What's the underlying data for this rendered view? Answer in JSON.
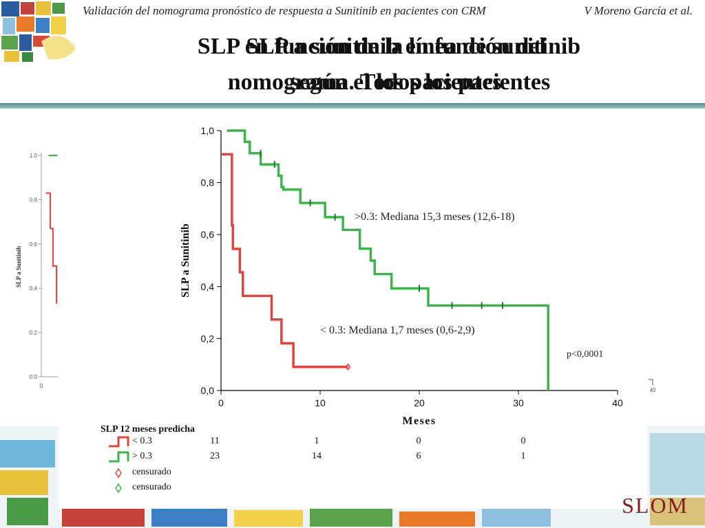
{
  "header": {
    "subtitle": "Validación del nomograma pronóstico de respuesta a Sunitinib en pacientes con CRM",
    "author": "V Moreno García et al."
  },
  "title_layers": {
    "back": [
      "SLP en función de la línea de sunitinib",
      "nomograma. Todos los pacientes"
    ],
    "front": [
      "SLP a sunitinib en función del",
      "según el los pacientes"
    ]
  },
  "chart_data": [
    {
      "type": "line",
      "ylabel": "SLP a Sunitinib",
      "xlabel": "Meses",
      "xlim": [
        0,
        40
      ],
      "ylim": [
        0,
        1
      ],
      "x_ticks": [
        "0",
        "10",
        "20",
        "30",
        "40"
      ],
      "y_ticks": [
        "0,0",
        "0,2",
        "0,4",
        "0,6",
        "0,8",
        "1,0"
      ],
      "colors": {
        "low": "#e8413c",
        "high": "#3ab54a"
      },
      "series": [
        {
          "name": "< 0.3",
          "steps": [
            [
              0,
              0.909
            ],
            [
              1.0,
              0.909
            ],
            [
              1.1,
              0.636
            ],
            [
              1.2,
              0.545
            ],
            [
              1.9,
              0.455
            ],
            [
              2.2,
              0.364
            ],
            [
              5.1,
              0.273
            ],
            [
              6.1,
              0.182
            ],
            [
              7.3,
              0.091
            ],
            [
              12.8,
              0.091
            ]
          ],
          "censored": [
            [
              12.8,
              0.091
            ]
          ]
        },
        {
          "name": "> 0.3",
          "steps": [
            [
              0.6,
              1.0
            ],
            [
              1.9,
              1.0
            ],
            [
              2.4,
              0.957
            ],
            [
              2.9,
              0.913
            ],
            [
              4.0,
              0.87
            ],
            [
              5.8,
              0.826
            ],
            [
              6.1,
              0.783
            ],
            [
              6.3,
              0.773
            ],
            [
              8.0,
              0.722
            ],
            [
              10.5,
              0.667
            ],
            [
              12.3,
              0.618
            ],
            [
              14.0,
              0.546
            ],
            [
              15.1,
              0.5
            ],
            [
              15.5,
              0.448
            ],
            [
              17.2,
              0.393
            ],
            [
              20.9,
              0.327
            ],
            [
              33.0,
              0.327
            ],
            [
              33.0,
              0.0
            ]
          ],
          "censored": [
            [
              4.0,
              0.913
            ],
            [
              5.4,
              0.87
            ],
            [
              9.0,
              0.722
            ],
            [
              11.5,
              0.667
            ],
            [
              20.0,
              0.393
            ],
            [
              23.3,
              0.327
            ],
            [
              26.3,
              0.327
            ],
            [
              28.4,
              0.327
            ]
          ]
        }
      ],
      "annotations": [
        {
          "text": ">0.3: Mediana 15,3 meses (12,6-18)"
        },
        {
          "text": "< 0.3: Mediana 1,7 meses (0,6-2,9)"
        },
        {
          "text": "p<0,0001"
        }
      ]
    },
    {
      "type": "line",
      "ylabel": "SLP a Sunitinib",
      "y_ticks": [
        "0.0",
        "0.2",
        "0.4",
        "0.6",
        "0.8",
        "1.0"
      ],
      "x_ticks": [
        "0"
      ],
      "x_tick_right": "40",
      "series": [
        {
          "name": "",
          "steps": [
            [
              0.8,
              1.0
            ],
            [
              1.8,
              1.0
            ]
          ]
        },
        {
          "name": "",
          "steps": [
            [
              0.5,
              0.83
            ],
            [
              1.0,
              0.83
            ],
            [
              1.0,
              0.67
            ],
            [
              1.3,
              0.67
            ],
            [
              1.3,
              0.5
            ],
            [
              1.7,
              0.5
            ],
            [
              1.7,
              0.33
            ]
          ]
        }
      ]
    }
  ],
  "risk_table": {
    "title": "SLP 12 meses predicha",
    "rows": [
      {
        "label": "< 0.3",
        "counts": [
          "11",
          "1",
          "0",
          "0"
        ]
      },
      {
        "label": "> 0.3",
        "counts": [
          "23",
          "14",
          "6",
          "1"
        ]
      }
    ],
    "legend": [
      {
        "label": "censurado",
        "color": "#e8413c"
      },
      {
        "label": "censurado",
        "color": "#3ab54a"
      }
    ]
  },
  "logo": "SLOM"
}
